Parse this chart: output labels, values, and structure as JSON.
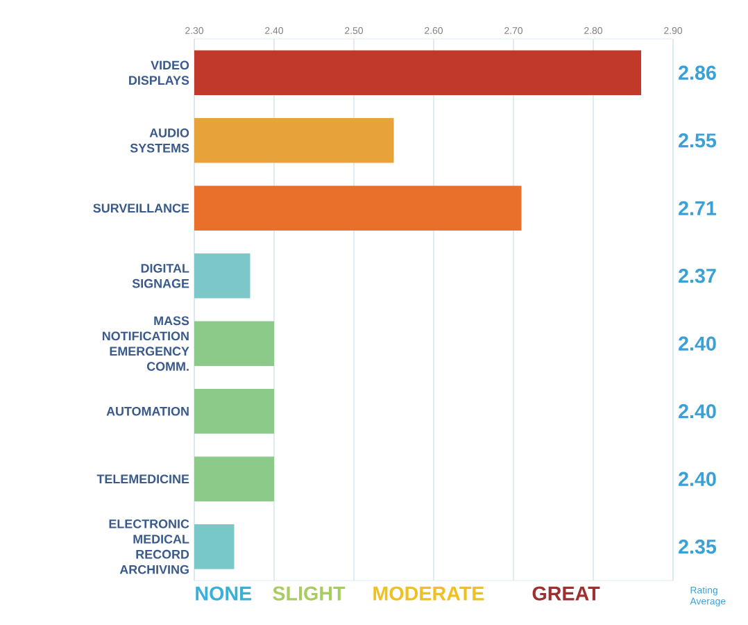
{
  "chart_data": {
    "type": "bar",
    "orientation": "horizontal",
    "categories": [
      "VIDEO DISPLAYS",
      "AUDIO SYSTEMS",
      "SURVEILLANCE",
      "DIGITAL SIGNAGE",
      "MASS NOTIFICATION EMERGENCY COMM.",
      "AUTOMATION",
      "TELEMEDICINE",
      "ELECTRONIC MEDICAL RECORD ARCHIVING"
    ],
    "values": [
      2.86,
      2.55,
      2.71,
      2.37,
      2.4,
      2.4,
      2.4,
      2.35
    ],
    "colors": [
      "#c0392b",
      "#e8a23a",
      "#e8702a",
      "#7cc8c8",
      "#8cca8a",
      "#8cca8a",
      "#8cca8a",
      "#78c8c8"
    ],
    "xlim": [
      2.3,
      2.9
    ],
    "xticks": [
      {
        "value": 2.3,
        "label": "2.30"
      },
      {
        "value": 2.4,
        "label": "2.40"
      },
      {
        "value": 2.5,
        "label": "2.50"
      },
      {
        "value": 2.6,
        "label": "2.60"
      },
      {
        "value": 2.7,
        "label": "2.70"
      },
      {
        "value": 2.8,
        "label": "2.80"
      },
      {
        "value": 2.9,
        "label": "2.90"
      }
    ],
    "grid": "x",
    "value_labels": [
      "2.86",
      "2.55",
      "2.71",
      "2.37",
      "2.40",
      "2.40",
      "2.40",
      "2.35"
    ],
    "annotations": [
      "NONE",
      "SLIGHT",
      "MODERATE",
      "GREAT",
      "Rating Average"
    ]
  }
}
